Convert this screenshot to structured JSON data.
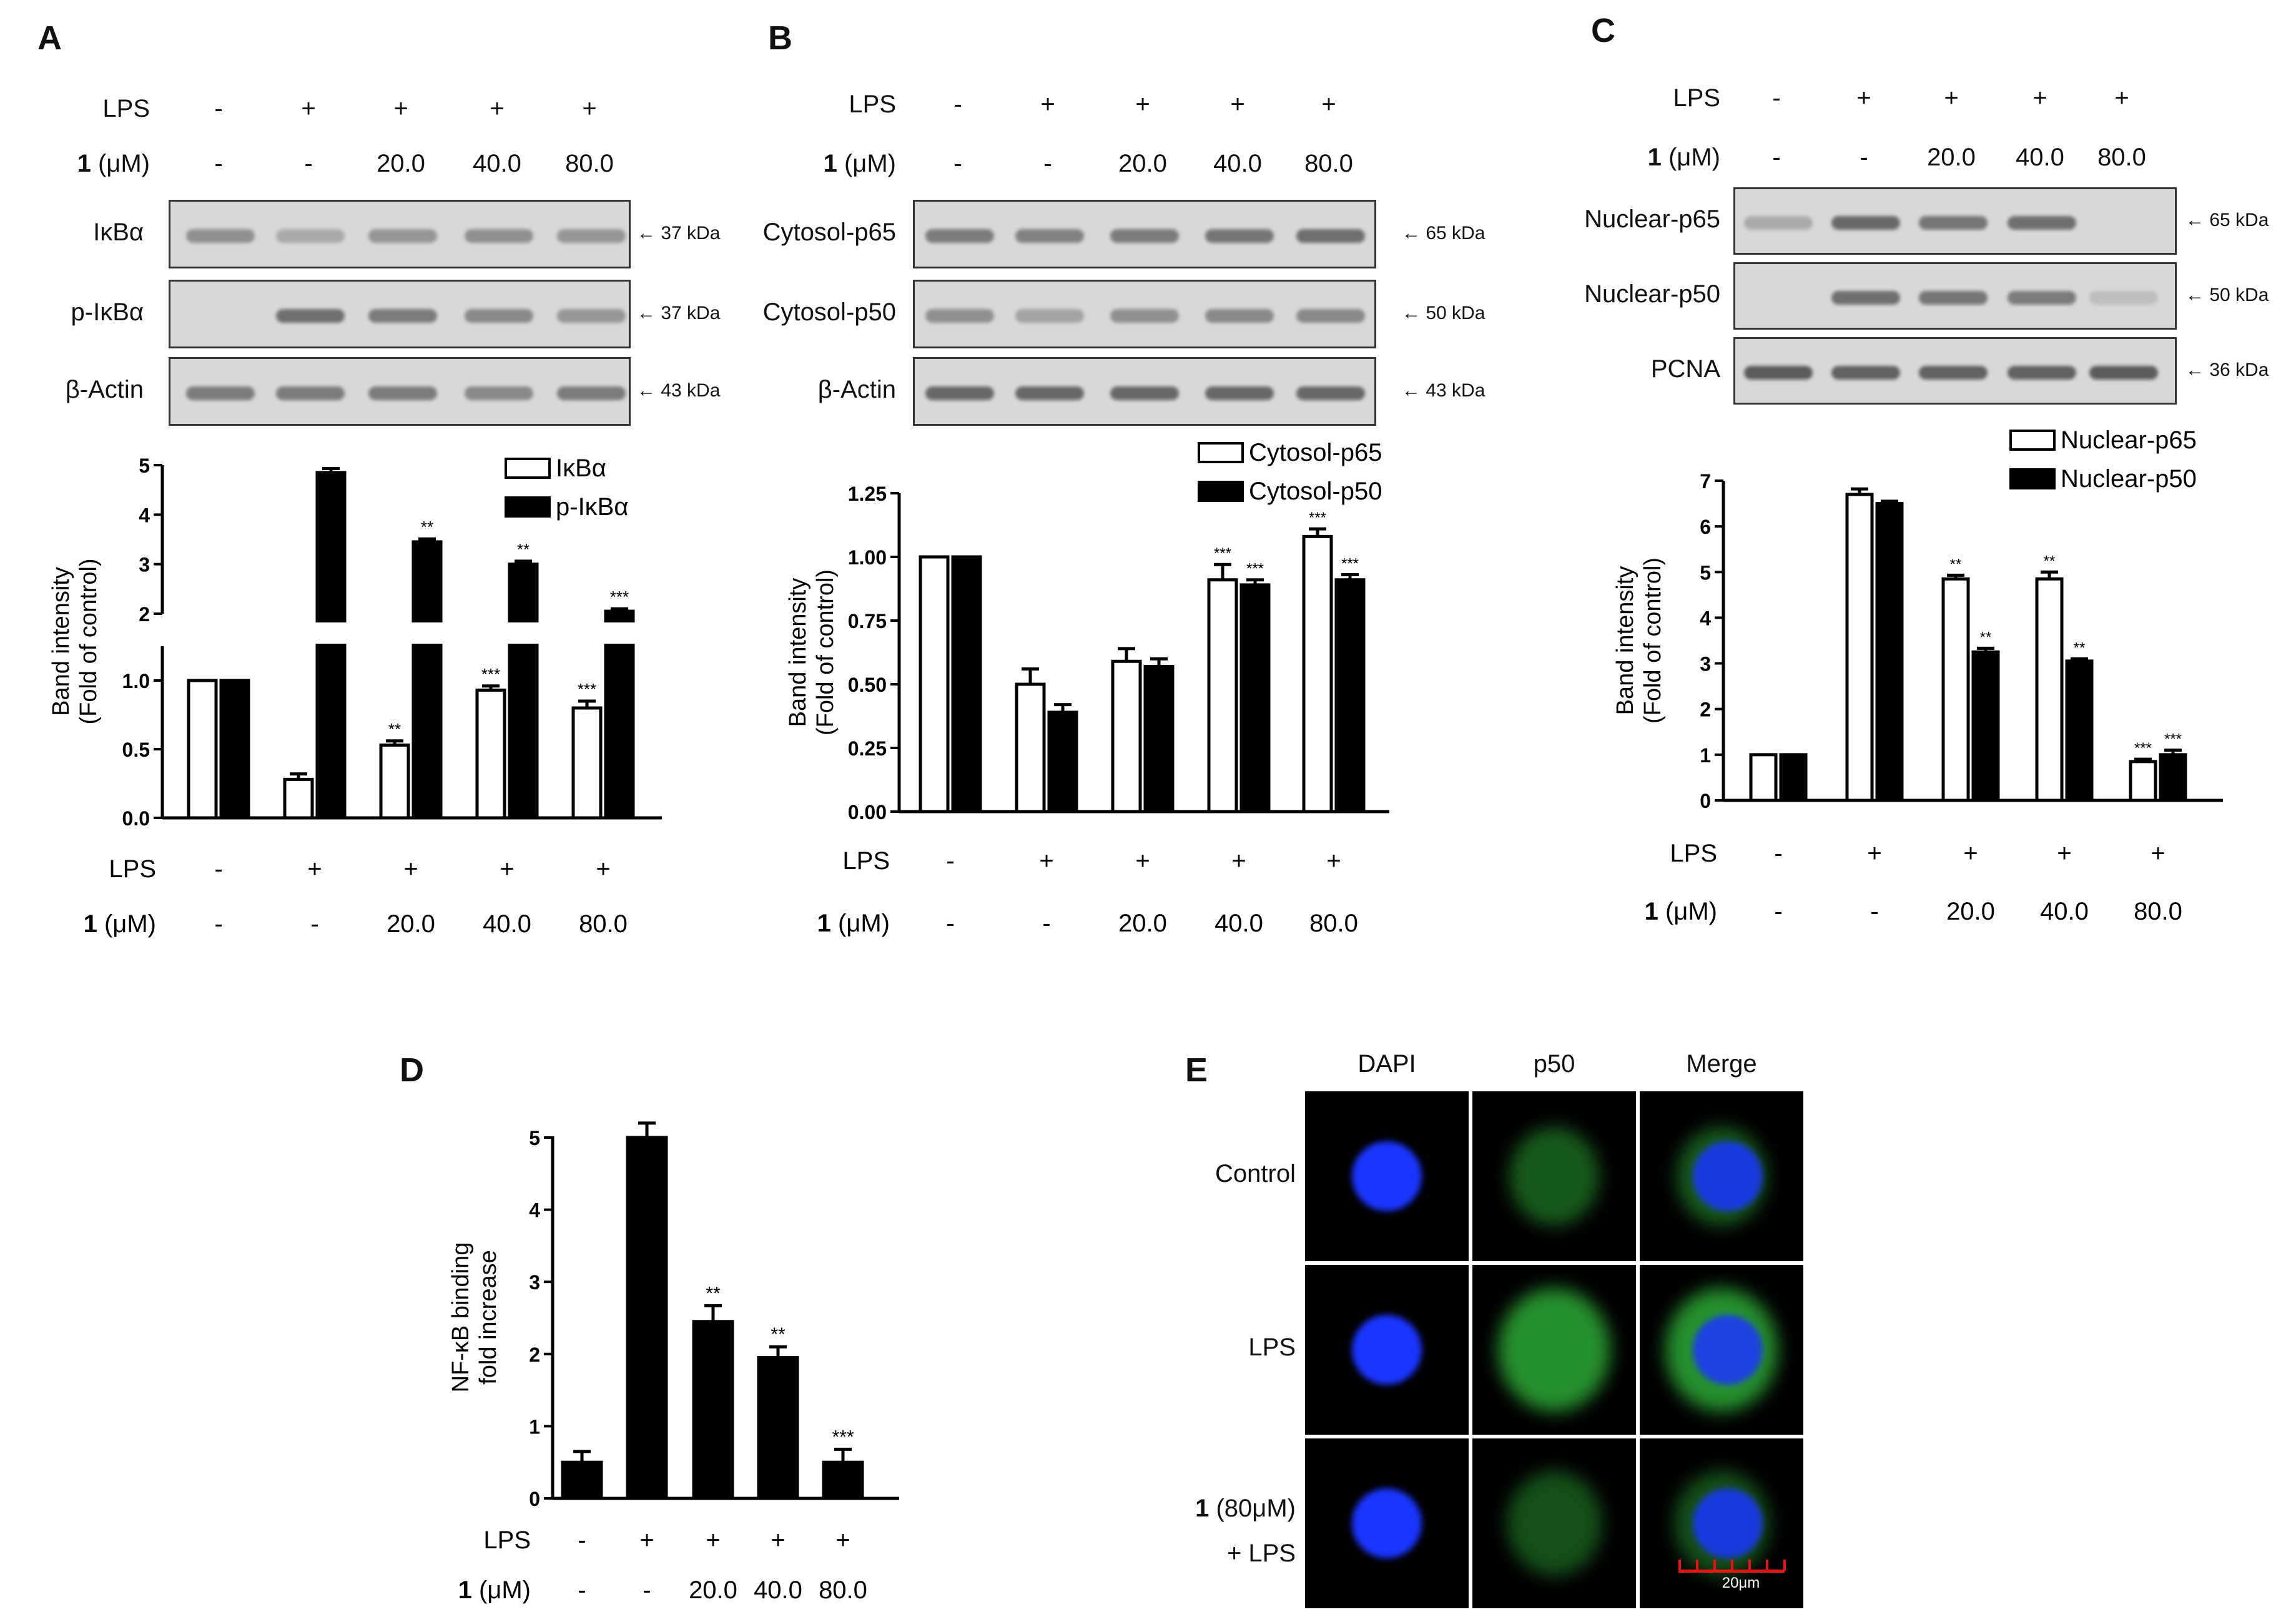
{
  "panels": {
    "A": {
      "label": "A",
      "conditions": {
        "lps_label": "LPS",
        "lps": [
          "-",
          "+",
          "+",
          "+",
          "+"
        ],
        "compound_bold": "1",
        "compound_unit": "(μM)",
        "dose": [
          "-",
          "-",
          "20.0",
          "40.0",
          "80.0"
        ]
      },
      "blots": [
        {
          "name": "IκBα",
          "size": "← 37 kDa",
          "intensity": [
            0.55,
            0.35,
            0.5,
            0.55,
            0.5
          ]
        },
        {
          "name": "p-IκBα",
          "size": "← 37 kDa",
          "intensity": [
            0.0,
            0.8,
            0.7,
            0.6,
            0.5
          ]
        },
        {
          "name": "β-Actin",
          "size": "← 43 kDa",
          "intensity": [
            0.7,
            0.7,
            0.7,
            0.6,
            0.7
          ]
        }
      ]
    },
    "B": {
      "label": "B",
      "conditions": {
        "lps_label": "LPS",
        "lps": [
          "-",
          "+",
          "+",
          "+",
          "+"
        ],
        "compound_bold": "1",
        "compound_unit": "(μM)",
        "dose": [
          "-",
          "-",
          "20.0",
          "40.0",
          "80.0"
        ]
      },
      "blots": [
        {
          "name": "Cytosol-p65",
          "size": "← 65 kDa",
          "intensity": [
            0.7,
            0.65,
            0.7,
            0.75,
            0.8
          ]
        },
        {
          "name": "Cytosol-p50",
          "size": "← 50 kDa",
          "intensity": [
            0.55,
            0.4,
            0.55,
            0.6,
            0.6
          ]
        },
        {
          "name": "β-Actin",
          "size": "← 43 kDa",
          "intensity": [
            0.85,
            0.85,
            0.85,
            0.85,
            0.85
          ]
        }
      ]
    },
    "C": {
      "label": "C",
      "conditions": {
        "lps_label": "LPS",
        "lps": [
          "-",
          "+",
          "+",
          "+",
          "+"
        ],
        "compound_bold": "1",
        "compound_unit": "(μM)",
        "dose": [
          "-",
          "-",
          "20.0",
          "40.0",
          "80.0"
        ]
      },
      "blots": [
        {
          "name": "Nuclear-p65",
          "size": "← 65 kDa",
          "intensity": [
            0.35,
            0.85,
            0.75,
            0.8,
            0.0
          ]
        },
        {
          "name": "Nuclear-p50",
          "size": "← 50 kDa",
          "intensity": [
            0.0,
            0.8,
            0.75,
            0.7,
            0.2
          ]
        },
        {
          "name": "PCNA",
          "size": "← 36 kDa",
          "intensity": [
            0.95,
            0.9,
            0.9,
            0.9,
            0.95
          ]
        }
      ]
    },
    "D": {
      "label": "D",
      "conditions": {
        "lps_label": "LPS",
        "lps": [
          "-",
          "+",
          "+",
          "+",
          "+"
        ],
        "compound_bold": "1",
        "compound_unit": "(μM)",
        "dose": [
          "-",
          "-",
          "20.0",
          "40.0",
          "80.0"
        ]
      }
    },
    "E": {
      "label": "E",
      "columns": [
        "DAPI",
        "p50",
        "Merge"
      ],
      "rows": [
        {
          "line1_bold": "",
          "line1": "Control",
          "line2": ""
        },
        {
          "line1_bold": "",
          "line1": "LPS",
          "line2": ""
        },
        {
          "line1_bold": "1",
          "line1": " (80μM)",
          "line2": "+ LPS"
        }
      ],
      "scale_bar": "20μm",
      "colors": {
        "dapi": "#1a35ff",
        "p50": "#2fb43a",
        "background": "#000000"
      }
    }
  },
  "chart_data": [
    {
      "panel": "A",
      "type": "bar",
      "categories": [
        "1",
        "2",
        "3",
        "4",
        "5"
      ],
      "ylabel_line1": "Band intensity",
      "ylabel_line2": "(Fold of control)",
      "axis_break": true,
      "lower_ticks": [
        "0.0",
        "0.5",
        "1.0"
      ],
      "upper_ticks": [
        "2",
        "3",
        "4",
        "5"
      ],
      "series": [
        {
          "name": "IκBα",
          "fill": "#ffffff",
          "values": [
            1.0,
            0.28,
            0.53,
            0.93,
            0.8
          ],
          "errors": [
            0.0,
            0.04,
            0.03,
            0.03,
            0.05
          ],
          "sig": [
            "",
            "",
            "**",
            "***",
            "***"
          ]
        },
        {
          "name": "p-IκBα",
          "fill": "#000000",
          "values": [
            1.0,
            4.85,
            3.45,
            3.0,
            2.05
          ],
          "errors": [
            0.0,
            0.08,
            0.06,
            0.06,
            0.05
          ],
          "sig": [
            "",
            "",
            "**",
            "**",
            "***"
          ]
        }
      ]
    },
    {
      "panel": "B",
      "type": "bar",
      "categories": [
        "1",
        "2",
        "3",
        "4",
        "5"
      ],
      "ylabel_line1": "Band intensity",
      "ylabel_line2": "(Fold of control)",
      "ylim": [
        0,
        1.25
      ],
      "ticks": [
        "0.00",
        "0.25",
        "0.50",
        "0.75",
        "1.00",
        "1.25"
      ],
      "series": [
        {
          "name": "Cytosol-p65",
          "fill": "#ffffff",
          "values": [
            1.0,
            0.5,
            0.59,
            0.91,
            1.08
          ],
          "errors": [
            0.0,
            0.06,
            0.05,
            0.06,
            0.03
          ],
          "sig": [
            "",
            "",
            "",
            "***",
            "***"
          ]
        },
        {
          "name": "Cytosol-p50",
          "fill": "#000000",
          "values": [
            1.0,
            0.39,
            0.57,
            0.89,
            0.91
          ],
          "errors": [
            0.0,
            0.03,
            0.03,
            0.02,
            0.02
          ],
          "sig": [
            "",
            "",
            "",
            "***",
            "***"
          ]
        }
      ]
    },
    {
      "panel": "C",
      "type": "bar",
      "categories": [
        "1",
        "2",
        "3",
        "4",
        "5"
      ],
      "ylabel_line1": "Band intensity",
      "ylabel_line2": "(Fold of control)",
      "ylim": [
        0,
        7
      ],
      "ticks": [
        "0",
        "1",
        "2",
        "3",
        "4",
        "5",
        "6",
        "7"
      ],
      "series": [
        {
          "name": "Nuclear-p65",
          "fill": "#ffffff",
          "values": [
            1.0,
            6.7,
            4.85,
            4.85,
            0.85
          ],
          "errors": [
            0.0,
            0.12,
            0.08,
            0.15,
            0.05
          ],
          "sig": [
            "",
            "",
            "**",
            "**",
            "***"
          ]
        },
        {
          "name": "Nuclear-p50",
          "fill": "#000000",
          "values": [
            1.0,
            6.5,
            3.25,
            3.05,
            1.0
          ],
          "errors": [
            0.0,
            0.05,
            0.08,
            0.05,
            0.1
          ],
          "sig": [
            "",
            "",
            "**",
            "**",
            "***"
          ]
        }
      ]
    },
    {
      "panel": "D",
      "type": "bar",
      "categories": [
        "1",
        "2",
        "3",
        "4",
        "5"
      ],
      "ylabel_line1": "NF-κB binding",
      "ylabel_line2": "fold increase",
      "ylim": [
        0,
        5
      ],
      "ticks": [
        "0",
        "1",
        "2",
        "3",
        "4",
        "5"
      ],
      "series": [
        {
          "fill": "#000000",
          "values": [
            0.5,
            5.0,
            2.45,
            1.95,
            0.5
          ],
          "errors": [
            0.15,
            0.2,
            0.22,
            0.15,
            0.18
          ],
          "sig": [
            "",
            "",
            "**",
            "**",
            "***"
          ]
        }
      ]
    }
  ]
}
